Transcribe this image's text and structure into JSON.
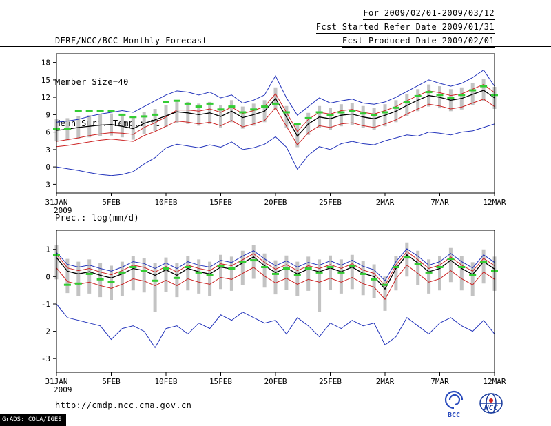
{
  "header": {
    "title": "DERF/NCC/BCC Monthly Forecast",
    "member_size": "Member Size=40",
    "panel1_label": "Mean Surf. Temp.: °C",
    "for_range": "For 2009/02/01-2009/03/12",
    "ref_date": "Fcst Started Refer Date 2009/01/31",
    "produced_date": "Fcst Produced Date 2009/02/01"
  },
  "panel2_label": "Prec.: log(mm/d)",
  "footer": {
    "url": "http://cmdp.ncc.cma.gov.cn",
    "grads_stamp": "GrADS: COLA/IGES",
    "logos": [
      {
        "name": "bcc-logo",
        "label": "BCC",
        "color": "#2a4bbd"
      },
      {
        "name": "ncc-logo",
        "label": "NCC",
        "color": "#1b3d9e",
        "accent": "#cc2222"
      }
    ]
  },
  "chart_data": [
    {
      "id": "temperature",
      "type": "line",
      "title": "Mean Surf. Temp.: °C",
      "xlabel": "",
      "ylabel": "°C",
      "grid": false,
      "legend": false,
      "ylim": [
        -4.5,
        19.5
      ],
      "yticks": [
        18,
        15,
        12,
        9,
        6,
        3,
        0,
        -3
      ],
      "x_tick_labels": [
        "31JAN",
        "5FEB",
        "10FEB",
        "15FEB",
        "20FEB",
        "25FEB",
        "2MAR",
        "7MAR",
        "12MAR"
      ],
      "x_tick_positions": [
        0,
        5,
        10,
        15,
        20,
        25,
        30,
        35,
        40
      ],
      "x_year_label": "2009",
      "n_points": 41,
      "bars": {
        "color": "#c3c3c3",
        "low": [
          4.4,
          4.6,
          4.9,
          5.1,
          5.3,
          5.4,
          5.1,
          4.7,
          5.6,
          6.2,
          6.9,
          7.6,
          7.4,
          7.1,
          7.4,
          6.8,
          7.7,
          6.6,
          7.1,
          7.7,
          9.9,
          6.7,
          3.4,
          5.5,
          6.7,
          6.4,
          7.0,
          7.2,
          6.7,
          6.4,
          7.0,
          7.7,
          8.7,
          9.6,
          10.4,
          10.1,
          9.6,
          9.9,
          10.6,
          11.3,
          10.0
        ],
        "high": [
          8.2,
          8.4,
          8.7,
          8.9,
          9.1,
          9.2,
          8.9,
          8.5,
          9.4,
          10.0,
          10.7,
          11.4,
          11.2,
          10.9,
          11.2,
          10.6,
          11.5,
          10.4,
          10.9,
          11.5,
          13.7,
          10.5,
          7.2,
          9.3,
          10.5,
          10.2,
          10.8,
          11.0,
          10.5,
          10.2,
          10.8,
          11.5,
          12.5,
          13.4,
          14.2,
          13.9,
          13.4,
          13.7,
          14.4,
          15.1,
          13.8
        ]
      },
      "series": [
        {
          "name": "ensemble-max",
          "color": "#2233bb",
          "width": 1,
          "values": [
            7.7,
            7.9,
            8.2,
            8.7,
            9.1,
            9.4,
            9.7,
            9.4,
            10.4,
            11.4,
            12.4,
            13.1,
            12.9,
            12.4,
            12.9,
            11.9,
            12.4,
            11.0,
            11.5,
            12.4,
            15.7,
            11.9,
            8.9,
            10.4,
            11.9,
            11.0,
            11.4,
            11.7,
            11.0,
            10.8,
            11.2,
            12.0,
            13.0,
            14.0,
            15.0,
            14.4,
            13.9,
            14.4,
            15.4,
            16.7,
            13.9
          ]
        },
        {
          "name": "ensemble-min",
          "color": "#2233bb",
          "width": 1,
          "values": [
            0.0,
            -0.3,
            -0.6,
            -1.0,
            -1.3,
            -1.5,
            -1.3,
            -0.8,
            0.5,
            1.6,
            3.3,
            3.9,
            3.6,
            3.3,
            3.8,
            3.4,
            4.3,
            3.0,
            3.3,
            3.9,
            5.2,
            3.4,
            -0.4,
            2.0,
            3.5,
            3.0,
            4.0,
            4.4,
            4.0,
            3.8,
            4.5,
            5.0,
            5.5,
            5.3,
            6.0,
            5.8,
            5.5,
            6.0,
            6.2,
            6.8,
            7.4
          ]
        },
        {
          "name": "upper-spread",
          "color": "#cc2222",
          "width": 1,
          "values": [
            4.4,
            4.7,
            5.0,
            5.4,
            5.7,
            5.9,
            5.8,
            5.6,
            6.8,
            7.6,
            8.6,
            9.8,
            9.8,
            9.6,
            10.0,
            9.4,
            10.3,
            9.2,
            9.7,
            10.4,
            12.6,
            9.4,
            6.1,
            8.2,
            9.4,
            9.1,
            9.7,
            9.9,
            9.4,
            9.1,
            9.7,
            10.4,
            11.4,
            12.3,
            13.1,
            12.8,
            12.3,
            12.6,
            13.4,
            14.2,
            12.8
          ]
        },
        {
          "name": "lower-spread",
          "color": "#cc2222",
          "width": 1,
          "values": [
            3.5,
            3.7,
            4.0,
            4.3,
            4.6,
            4.8,
            4.6,
            4.4,
            5.4,
            6.1,
            7.0,
            7.9,
            7.7,
            7.4,
            7.7,
            7.1,
            8.0,
            6.9,
            7.4,
            8.0,
            10.2,
            7.0,
            3.8,
            5.9,
            7.1,
            6.8,
            7.4,
            7.6,
            7.1,
            6.8,
            7.4,
            8.1,
            9.1,
            10.0,
            10.8,
            10.5,
            10.0,
            10.3,
            11.0,
            11.7,
            10.4
          ]
        },
        {
          "name": "ensemble-mean",
          "color": "#000000",
          "width": 1.3,
          "values": [
            6.3,
            6.5,
            6.8,
            7.0,
            7.2,
            7.3,
            7.0,
            6.6,
            7.5,
            8.1,
            8.8,
            9.5,
            9.3,
            9.0,
            9.3,
            8.7,
            9.6,
            8.5,
            9.0,
            9.6,
            11.8,
            8.6,
            5.3,
            7.4,
            8.6,
            8.3,
            8.9,
            9.1,
            8.6,
            8.3,
            8.9,
            9.6,
            10.6,
            11.5,
            12.3,
            12.0,
            11.5,
            11.8,
            12.5,
            13.2,
            11.9
          ]
        }
      ],
      "obs_dashes": {
        "name": "observation",
        "color": "#33cc33",
        "values": [
          6.5,
          6.6,
          9.6,
          9.7,
          9.7,
          9.6,
          9.0,
          8.6,
          8.7,
          9.0,
          11.2,
          11.4,
          10.9,
          10.4,
          10.9,
          9.9,
          10.4,
          9.4,
          9.9,
          10.4,
          10.9,
          9.4,
          7.4,
          8.4,
          9.4,
          8.9,
          9.4,
          9.7,
          9.2,
          8.9,
          9.4,
          10.2,
          11.2,
          12.2,
          12.9,
          12.4,
          11.9,
          12.4,
          13.2,
          13.9,
          12.4
        ]
      }
    },
    {
      "id": "precipitation",
      "type": "line",
      "title": "Prec.: log(mm/d)",
      "xlabel": "",
      "ylabel": "log(mm/d)",
      "grid": false,
      "legend": false,
      "ylim": [
        -3.5,
        1.7
      ],
      "yticks": [
        1,
        0,
        -1,
        -2,
        -3
      ],
      "x_tick_labels": [
        "31JAN",
        "5FEB",
        "10FEB",
        "15FEB",
        "20FEB",
        "25FEB",
        "2MAR",
        "7MAR",
        "12MAR"
      ],
      "x_tick_positions": [
        0,
        5,
        10,
        15,
        20,
        25,
        30,
        35,
        40
      ],
      "x_year_label": "2009",
      "n_points": 41,
      "bars": {
        "color": "#c3c3c3",
        "low": [
          -0.1,
          -0.6,
          -0.7,
          -0.62,
          -0.75,
          -0.85,
          -0.7,
          -0.5,
          -0.58,
          -1.3,
          -0.55,
          -0.75,
          -0.5,
          -0.62,
          -0.7,
          -0.45,
          -0.52,
          -0.3,
          -0.08,
          -0.4,
          -0.65,
          -0.48,
          -0.7,
          -0.52,
          -1.3,
          -0.48,
          -0.62,
          -0.45,
          -0.68,
          -0.8,
          -1.25,
          -0.5,
          0.0,
          -0.3,
          -0.62,
          -0.5,
          -0.2,
          -0.5,
          -0.72,
          -0.25,
          -0.52
        ],
        "high": [
          1.15,
          0.65,
          0.55,
          0.63,
          0.5,
          0.4,
          0.55,
          0.75,
          0.67,
          0.5,
          0.7,
          0.5,
          0.75,
          0.63,
          0.55,
          0.8,
          0.73,
          0.95,
          1.17,
          0.85,
          0.6,
          0.77,
          0.55,
          0.73,
          0.63,
          0.77,
          0.63,
          0.8,
          0.57,
          0.45,
          0.0,
          0.75,
          1.25,
          0.95,
          0.63,
          0.75,
          1.05,
          0.75,
          0.53,
          1.0,
          0.73
        ]
      },
      "series": [
        {
          "name": "ensemble-max",
          "color": "#2233bb",
          "width": 1,
          "values": [
            0.88,
            0.45,
            0.35,
            0.42,
            0.3,
            0.2,
            0.35,
            0.55,
            0.48,
            0.3,
            0.5,
            0.3,
            0.55,
            0.42,
            0.35,
            0.6,
            0.52,
            0.75,
            0.95,
            0.65,
            0.4,
            0.58,
            0.35,
            0.52,
            0.42,
            0.58,
            0.42,
            0.6,
            0.38,
            0.25,
            -0.15,
            0.55,
            1.02,
            0.75,
            0.42,
            0.55,
            0.85,
            0.55,
            0.32,
            0.8,
            0.52
          ]
        },
        {
          "name": "ensemble-min",
          "color": "#2233bb",
          "width": 1,
          "values": [
            -1.0,
            -1.5,
            -1.6,
            -1.7,
            -1.8,
            -2.3,
            -1.9,
            -1.8,
            -2.0,
            -2.6,
            -1.9,
            -1.8,
            -2.1,
            -1.7,
            -1.9,
            -1.4,
            -1.6,
            -1.3,
            -1.5,
            -1.7,
            -1.6,
            -2.1,
            -1.5,
            -1.8,
            -2.2,
            -1.7,
            -1.9,
            -1.6,
            -1.8,
            -1.7,
            -2.5,
            -2.2,
            -1.5,
            -1.8,
            -2.1,
            -1.7,
            -1.5,
            -1.8,
            -2.0,
            -1.6,
            -2.1
          ]
        },
        {
          "name": "upper-spread",
          "color": "#cc2222",
          "width": 1,
          "values": [
            0.82,
            0.32,
            0.22,
            0.3,
            0.17,
            0.07,
            0.22,
            0.42,
            0.34,
            0.17,
            0.37,
            0.17,
            0.42,
            0.3,
            0.22,
            0.47,
            0.4,
            0.62,
            0.84,
            0.52,
            0.27,
            0.44,
            0.22,
            0.4,
            0.3,
            0.44,
            0.3,
            0.47,
            0.24,
            0.12,
            -0.33,
            0.42,
            0.92,
            0.62,
            0.3,
            0.42,
            0.72,
            0.42,
            0.2,
            0.67,
            0.4
          ]
        },
        {
          "name": "lower-spread",
          "color": "#cc2222",
          "width": 1,
          "values": [
            0.32,
            -0.18,
            -0.28,
            -0.2,
            -0.33,
            -0.43,
            -0.28,
            -0.08,
            -0.16,
            -0.33,
            -0.13,
            -0.33,
            -0.08,
            -0.2,
            -0.28,
            -0.03,
            -0.1,
            0.12,
            0.34,
            0.02,
            -0.23,
            -0.06,
            -0.28,
            -0.1,
            -0.2,
            -0.06,
            -0.2,
            -0.03,
            -0.26,
            -0.38,
            -0.83,
            -0.08,
            0.42,
            0.12,
            -0.2,
            -0.08,
            0.22,
            -0.08,
            -0.3,
            0.17,
            -0.1
          ]
        },
        {
          "name": "ensemble-mean",
          "color": "#000000",
          "width": 1.3,
          "values": [
            0.7,
            0.2,
            0.1,
            0.18,
            0.05,
            -0.05,
            0.1,
            0.3,
            0.22,
            0.05,
            0.25,
            0.05,
            0.3,
            0.18,
            0.1,
            0.35,
            0.28,
            0.5,
            0.72,
            0.4,
            0.15,
            0.32,
            0.1,
            0.28,
            0.18,
            0.32,
            0.18,
            0.35,
            0.12,
            0.0,
            -0.45,
            0.3,
            0.8,
            0.5,
            0.18,
            0.3,
            0.6,
            0.3,
            0.08,
            0.55,
            0.28
          ]
        }
      ],
      "obs_dashes": {
        "name": "observation",
        "color": "#33cc33",
        "values": [
          0.8,
          -0.3,
          -0.25,
          0.1,
          -0.1,
          -0.2,
          0.15,
          0.35,
          0.2,
          -0.15,
          0.3,
          -0.05,
          0.35,
          0.15,
          0.05,
          0.4,
          0.3,
          0.55,
          0.6,
          0.35,
          0.1,
          0.3,
          0.05,
          0.3,
          0.15,
          0.35,
          0.15,
          0.4,
          0.1,
          -0.1,
          -0.3,
          0.35,
          0.7,
          0.45,
          0.15,
          0.35,
          0.65,
          0.35,
          0.05,
          0.55,
          0.2
        ]
      }
    }
  ]
}
